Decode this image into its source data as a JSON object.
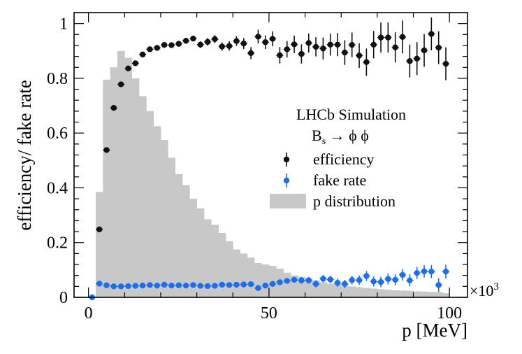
{
  "chart_data": {
    "type": "scatter",
    "xlabel": "p [MeV]",
    "ylabel": "efficiency/ fake rate",
    "x_multiplier": "×10",
    "x_multiplier_exp": "3",
    "xlim": [
      -4,
      105
    ],
    "ylim": [
      0,
      1.04
    ],
    "xticks": [
      {
        "value": 0,
        "label": "0"
      },
      {
        "value": 50,
        "label": "50"
      },
      {
        "value": 100,
        "label": "100"
      }
    ],
    "yticks": [
      {
        "value": 0,
        "label": "0"
      },
      {
        "value": 0.2,
        "label": "0.2"
      },
      {
        "value": 0.4,
        "label": "0.4"
      },
      {
        "value": 0.6,
        "label": "0.6"
      },
      {
        "value": 0.8,
        "label": "0.8"
      },
      {
        "value": 1,
        "label": "1"
      }
    ],
    "legend": {
      "title": "LHCb Simulation",
      "subtitle": "B",
      "subtitle_sub": "s",
      "subtitle_rest": " → ϕ ϕ",
      "entries": [
        {
          "name": "efficiency",
          "color": "#111111"
        },
        {
          "name": "fake rate",
          "color": "#1a6ef0"
        },
        {
          "name": "p distribution",
          "color": "#c8c8c8"
        }
      ],
      "position": "center-right"
    },
    "series": [
      {
        "name": "efficiency",
        "color": "#111111",
        "x": [
          3,
          5,
          7,
          9,
          11,
          13,
          15,
          17,
          19,
          21,
          23,
          25,
          27,
          29,
          31,
          33,
          35,
          37,
          39,
          41,
          43,
          45,
          47,
          49,
          51,
          53,
          55,
          57,
          59,
          61,
          63,
          65,
          67,
          69,
          71,
          73,
          75,
          77,
          79,
          81,
          83,
          85,
          87,
          89,
          91,
          93,
          95,
          97,
          99
        ],
        "y": [
          0.248,
          0.538,
          0.692,
          0.778,
          0.836,
          0.855,
          0.887,
          0.906,
          0.911,
          0.922,
          0.921,
          0.926,
          0.937,
          0.945,
          0.923,
          0.933,
          0.943,
          0.916,
          0.918,
          0.936,
          0.927,
          0.892,
          0.952,
          0.932,
          0.944,
          0.884,
          0.906,
          0.924,
          0.889,
          0.929,
          0.915,
          0.909,
          0.923,
          0.923,
          0.894,
          0.922,
          0.883,
          0.859,
          0.923,
          0.949,
          0.949,
          0.913,
          0.951,
          0.863,
          0.872,
          0.902,
          0.962,
          0.912,
          0.853
        ],
        "err": [
          0.006,
          0.006,
          0.005,
          0.006,
          0.006,
          0.006,
          0.006,
          0.006,
          0.006,
          0.008,
          0.008,
          0.01,
          0.01,
          0.01,
          0.012,
          0.014,
          0.015,
          0.015,
          0.017,
          0.018,
          0.02,
          0.022,
          0.025,
          0.025,
          0.027,
          0.03,
          0.03,
          0.032,
          0.035,
          0.035,
          0.035,
          0.04,
          0.04,
          0.042,
          0.045,
          0.045,
          0.045,
          0.05,
          0.05,
          0.055,
          0.055,
          0.055,
          0.06,
          0.06,
          0.06,
          0.06,
          0.06,
          0.06,
          0.06
        ]
      },
      {
        "name": "fake rate",
        "color": "#1a6ef0",
        "x": [
          1,
          3,
          5,
          7,
          9,
          11,
          13,
          15,
          17,
          19,
          21,
          23,
          25,
          27,
          29,
          31,
          33,
          35,
          37,
          39,
          41,
          43,
          45,
          47,
          49,
          51,
          53,
          55,
          57,
          59,
          61,
          63,
          65,
          67,
          69,
          71,
          73,
          75,
          77,
          79,
          81,
          83,
          85,
          87,
          89,
          91,
          93,
          95,
          97,
          99
        ],
        "y": [
          0.0,
          0.05,
          0.044,
          0.04,
          0.04,
          0.041,
          0.042,
          0.043,
          0.045,
          0.043,
          0.046,
          0.043,
          0.044,
          0.043,
          0.045,
          0.042,
          0.041,
          0.042,
          0.046,
          0.045,
          0.046,
          0.047,
          0.048,
          0.034,
          0.043,
          0.049,
          0.055,
          0.06,
          0.064,
          0.062,
          0.062,
          0.049,
          0.068,
          0.065,
          0.053,
          0.049,
          0.063,
          0.063,
          0.078,
          0.058,
          0.056,
          0.067,
          0.064,
          0.082,
          0.062,
          0.089,
          0.095,
          0.094,
          0.045,
          0.094
        ],
        "err": [
          0.0,
          0.003,
          0.002,
          0.002,
          0.002,
          0.002,
          0.002,
          0.002,
          0.002,
          0.003,
          0.003,
          0.003,
          0.003,
          0.004,
          0.004,
          0.004,
          0.005,
          0.005,
          0.006,
          0.006,
          0.007,
          0.007,
          0.008,
          0.008,
          0.009,
          0.01,
          0.01,
          0.01,
          0.011,
          0.012,
          0.012,
          0.013,
          0.013,
          0.014,
          0.015,
          0.015,
          0.016,
          0.017,
          0.018,
          0.018,
          0.019,
          0.02,
          0.02,
          0.021,
          0.022,
          0.022,
          0.023,
          0.024,
          0.025,
          0.025
        ]
      },
      {
        "name": "p distribution",
        "type": "histogram",
        "color": "#c8c8c8",
        "bin_edges": [
          2,
          4,
          6,
          8,
          10,
          12,
          14,
          16,
          18,
          20,
          22,
          24,
          26,
          28,
          30,
          32,
          34,
          36,
          38,
          40,
          42,
          44,
          46,
          48,
          50,
          52,
          54,
          56,
          58,
          60,
          62,
          64,
          66,
          68,
          70,
          72,
          74,
          76,
          78,
          80,
          82,
          84,
          86,
          88,
          90,
          92,
          94,
          96,
          98,
          100
        ],
        "values": [
          0.385,
          0.795,
          0.84,
          0.9,
          0.875,
          0.8,
          0.735,
          0.68,
          0.625,
          0.575,
          0.51,
          0.45,
          0.41,
          0.36,
          0.325,
          0.285,
          0.265,
          0.235,
          0.205,
          0.175,
          0.16,
          0.145,
          0.125,
          0.12,
          0.115,
          0.105,
          0.09,
          0.08,
          0.075,
          0.07,
          0.062,
          0.055,
          0.05,
          0.048,
          0.043,
          0.04,
          0.037,
          0.034,
          0.032,
          0.03,
          0.028,
          0.026,
          0.025,
          0.024,
          0.022,
          0.021,
          0.02,
          0.019,
          0.015
        ]
      }
    ]
  }
}
